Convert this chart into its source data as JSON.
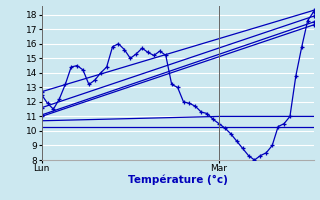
{
  "xlabel": "Température (°c)",
  "background_color": "#cce8f0",
  "grid_color": "#ffffff",
  "line_color": "#0000bb",
  "ylim": [
    8,
    18.6
  ],
  "yticks": [
    8,
    9,
    10,
    11,
    12,
    13,
    14,
    15,
    16,
    17,
    18
  ],
  "xlim": [
    0,
    46
  ],
  "lun_x": 0,
  "mar_x": 30,
  "series": {
    "s1_straight": {
      "x": [
        0,
        46
      ],
      "y": [
        12.7,
        18.3
      ]
    },
    "s2_straight": {
      "x": [
        0,
        46
      ],
      "y": [
        11.6,
        17.9
      ]
    },
    "s3_straight": {
      "x": [
        0,
        46
      ],
      "y": [
        11.1,
        17.5
      ]
    },
    "s4_straight": {
      "x": [
        0,
        46
      ],
      "y": [
        11.0,
        17.3
      ]
    },
    "s5_flat": {
      "x": [
        0,
        30,
        46
      ],
      "y": [
        10.7,
        11.0,
        11.0
      ]
    },
    "s6_flat": {
      "x": [
        0,
        30,
        46
      ],
      "y": [
        10.3,
        10.3,
        10.3
      ]
    },
    "s7_wavy": {
      "x": [
        0,
        1,
        2,
        3,
        4,
        5,
        6,
        7,
        8,
        9,
        10,
        11,
        12,
        13,
        14,
        15,
        16,
        17,
        18,
        19,
        20,
        21,
        22,
        23,
        24,
        25,
        26,
        27,
        28,
        29,
        30,
        31,
        32,
        33,
        34,
        35,
        36,
        37,
        38,
        39,
        40,
        41,
        42,
        43,
        44,
        45,
        46
      ],
      "y": [
        12.5,
        11.9,
        11.5,
        12.2,
        13.2,
        14.4,
        14.5,
        14.2,
        13.2,
        13.5,
        14.0,
        14.4,
        15.8,
        16.0,
        15.6,
        15.0,
        15.3,
        15.7,
        15.4,
        15.2,
        15.5,
        15.2,
        13.2,
        13.0,
        12.0,
        11.9,
        11.7,
        11.3,
        11.2,
        10.8,
        10.5,
        10.2,
        9.8,
        9.3,
        8.8,
        8.3,
        8.0,
        8.3,
        8.5,
        9.0,
        10.3,
        10.5,
        11.0,
        13.8,
        15.8,
        17.6,
        18.2
      ]
    }
  }
}
